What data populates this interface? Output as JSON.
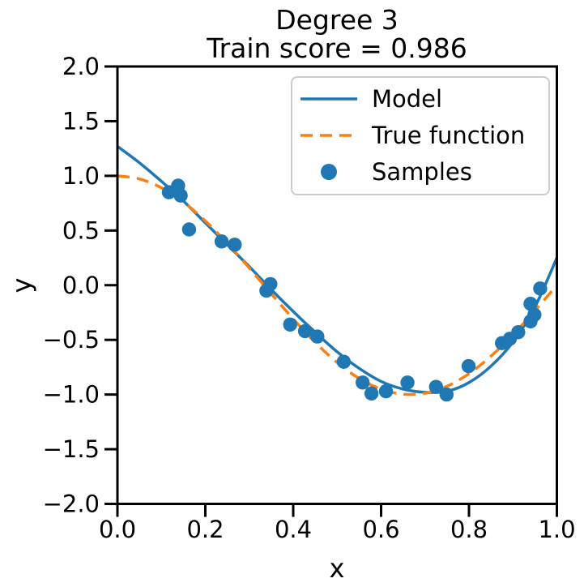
{
  "title": {
    "line1": "Degree 3",
    "line2": "Train score = 0.986"
  },
  "axes": {
    "xlabel": "x",
    "ylabel": "y"
  },
  "legend": {
    "position": "upper right",
    "items": [
      {
        "label": "Model",
        "swatch": "solid-line",
        "color": "#1f77b4"
      },
      {
        "label": "True function",
        "swatch": "dashed-line",
        "color": "#ff7f0e"
      },
      {
        "label": "Samples",
        "swatch": "dot",
        "color": "#1f77b4"
      }
    ]
  },
  "colors": {
    "model": "#1f77b4",
    "true_function": "#ff7f0e",
    "samples": "#1f77b4",
    "spine": "#000000",
    "background": "#ffffff",
    "legend_border": "#cccccc",
    "legend_fill": "#ffffff"
  },
  "chart_data": {
    "type": "line",
    "title": "Degree 3\nTrain score = 0.986",
    "xlabel": "x",
    "ylabel": "y",
    "xlim": [
      0.0,
      1.0
    ],
    "ylim": [
      -2.0,
      2.0
    ],
    "grid": false,
    "x_ticks": [
      0.0,
      0.2,
      0.4,
      0.6,
      0.8,
      1.0
    ],
    "x_tick_labels": [
      "0.0",
      "0.2",
      "0.4",
      "0.6",
      "0.8",
      "1.0"
    ],
    "y_ticks": [
      2.0,
      1.5,
      1.0,
      0.5,
      0.0,
      -0.5,
      -1.0,
      -1.5,
      -2.0
    ],
    "y_tick_labels": [
      "2.0",
      "1.5",
      "1.0",
      "0.5",
      "0.0",
      "−0.5",
      "−1.0",
      "−1.5",
      "−2.0"
    ],
    "legend_entries": [
      "Model",
      "True function",
      "Samples"
    ],
    "series": [
      {
        "name": "Model",
        "type": "line",
        "style": "solid",
        "color": "#1f77b4",
        "x": [
          0.0,
          0.05,
          0.1,
          0.15,
          0.2,
          0.25,
          0.3,
          0.35,
          0.4,
          0.45,
          0.5,
          0.55,
          0.6,
          0.65,
          0.7,
          0.75,
          0.8,
          0.85,
          0.9,
          0.95,
          1.0
        ],
        "y": [
          1.27,
          1.12,
          0.95,
          0.77,
          0.57,
          0.37,
          0.17,
          -0.04,
          -0.24,
          -0.43,
          -0.61,
          -0.76,
          -0.88,
          -0.95,
          -0.98,
          -0.97,
          -0.89,
          -0.74,
          -0.52,
          -0.2,
          0.25
        ]
      },
      {
        "name": "True function",
        "type": "line",
        "style": "dashed",
        "color": "#ff7f0e",
        "x": [
          0.0,
          0.05,
          0.1,
          0.15,
          0.2,
          0.25,
          0.3,
          0.35,
          0.4,
          0.45,
          0.5,
          0.55,
          0.6,
          0.65,
          0.7,
          0.75,
          0.8,
          0.85,
          0.9,
          0.95,
          1.0
        ],
        "y": [
          1.0,
          0.972,
          0.891,
          0.76,
          0.588,
          0.383,
          0.156,
          -0.078,
          -0.309,
          -0.522,
          -0.707,
          -0.853,
          -0.951,
          -0.997,
          -0.988,
          -0.924,
          -0.809,
          -0.649,
          -0.454,
          -0.233,
          0.0
        ]
      },
      {
        "name": "Samples",
        "type": "scatter",
        "color": "#1f77b4",
        "points": [
          [
            0.117,
            0.85
          ],
          [
            0.138,
            0.91
          ],
          [
            0.144,
            0.82
          ],
          [
            0.163,
            0.51
          ],
          [
            0.237,
            0.4
          ],
          [
            0.267,
            0.37
          ],
          [
            0.339,
            -0.05
          ],
          [
            0.348,
            0.01
          ],
          [
            0.393,
            -0.36
          ],
          [
            0.427,
            -0.42
          ],
          [
            0.455,
            -0.47
          ],
          [
            0.515,
            -0.7
          ],
          [
            0.558,
            -0.89
          ],
          [
            0.578,
            -0.99
          ],
          [
            0.611,
            -0.97
          ],
          [
            0.66,
            -0.89
          ],
          [
            0.725,
            -0.93
          ],
          [
            0.749,
            -1.0
          ],
          [
            0.799,
            -0.74
          ],
          [
            0.875,
            -0.53
          ],
          [
            0.893,
            -0.49
          ],
          [
            0.912,
            -0.43
          ],
          [
            0.94,
            -0.33
          ],
          [
            0.949,
            -0.27
          ],
          [
            0.94,
            -0.17
          ],
          [
            0.962,
            -0.03
          ]
        ]
      }
    ]
  }
}
